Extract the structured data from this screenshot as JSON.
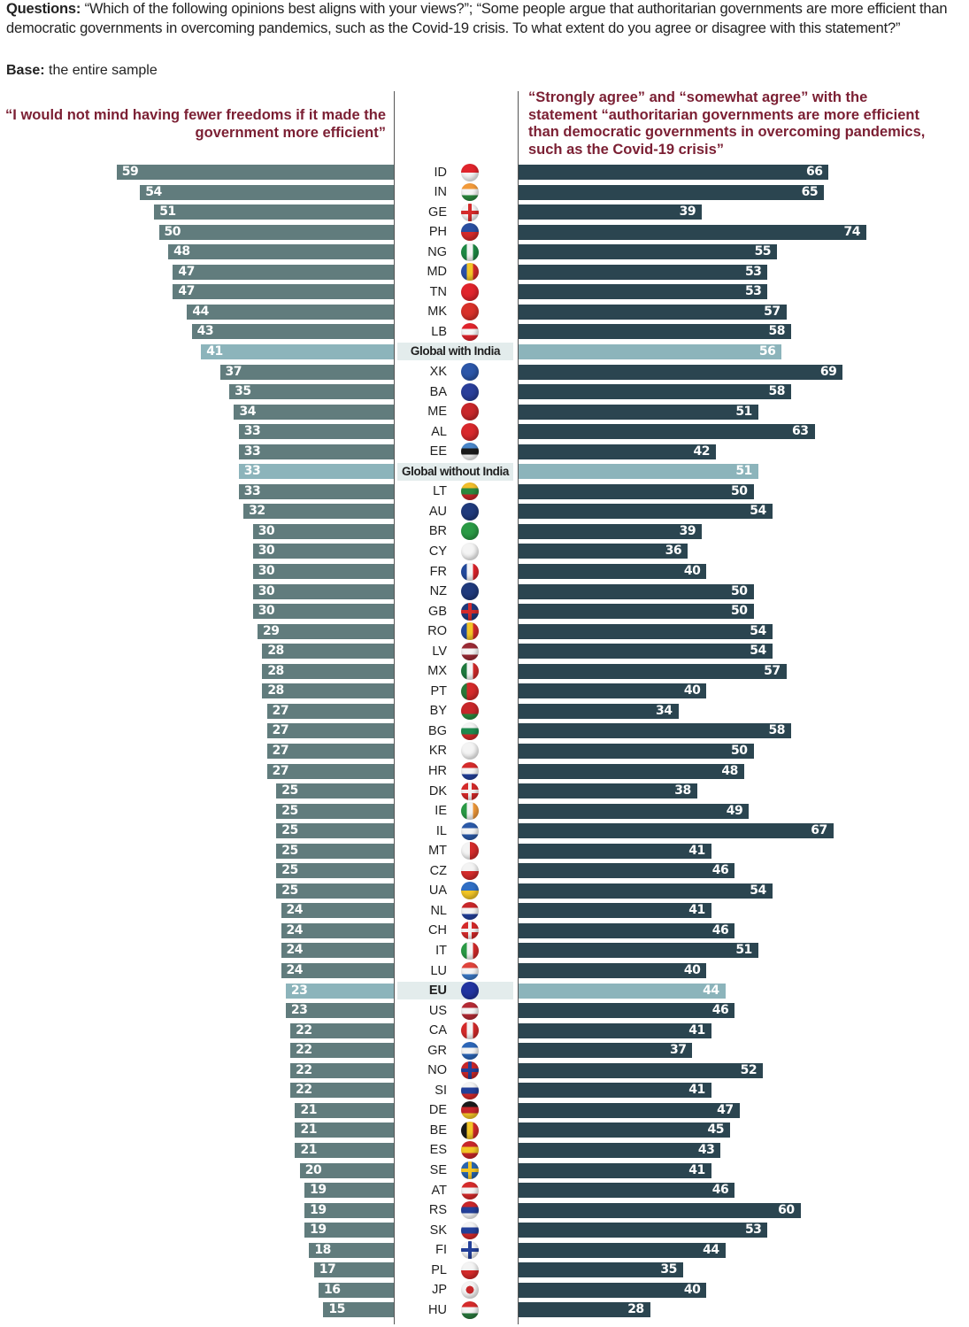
{
  "header": {
    "questions_label": "Questions:",
    "questions_text": " “Which of the following opinions best aligns with your views?”; “Some people argue that authoritarian governments are more efficient than democratic governments in overcoming pandemics, such as the Covid-19 crisis. To what extent do you agree or disagree with this statement?”",
    "base_label": "Base:",
    "base_text": " the entire sample"
  },
  "colors": {
    "left_bar": "#617c7d",
    "right_bar": "#2b4550",
    "aggregate_bar": "#8cb4bb",
    "aggregate_row_bg": "#e3ecec",
    "heading": "#7b1f33"
  },
  "chart_data": {
    "type": "bar",
    "orientation": "horizontal-diverging",
    "series": [
      {
        "name": "“I would not mind having fewer freedoms if it made the government more efficient”",
        "side": "left"
      },
      {
        "name": "“Strongly agree” and “somewhat agree” with the statement “authoritarian governments are more efficient than democratic governments in overcoming pandemics, such as the Covid-19 crisis”",
        "side": "right"
      }
    ],
    "unit": "%",
    "xlim": [
      0,
      74
    ],
    "rows": [
      {
        "label": "ID",
        "flag": "indonesia-flag-icon",
        "left": 59,
        "right": 66,
        "aggregate": false
      },
      {
        "label": "IN",
        "flag": "india-flag-icon",
        "left": 54,
        "right": 65,
        "aggregate": false
      },
      {
        "label": "GE",
        "flag": "georgia-flag-icon",
        "left": 51,
        "right": 39,
        "aggregate": false
      },
      {
        "label": "PH",
        "flag": "philippines-flag-icon",
        "left": 50,
        "right": 74,
        "aggregate": false
      },
      {
        "label": "NG",
        "flag": "nigeria-flag-icon",
        "left": 48,
        "right": 55,
        "aggregate": false
      },
      {
        "label": "MD",
        "flag": "moldova-flag-icon",
        "left": 47,
        "right": 53,
        "aggregate": false
      },
      {
        "label": "TN",
        "flag": "tunisia-flag-icon",
        "left": 47,
        "right": 53,
        "aggregate": false
      },
      {
        "label": "MK",
        "flag": "north-macedonia-flag-icon",
        "left": 44,
        "right": 57,
        "aggregate": false
      },
      {
        "label": "LB",
        "flag": "lebanon-flag-icon",
        "left": 43,
        "right": 58,
        "aggregate": false
      },
      {
        "label": "Global with India",
        "flag": null,
        "left": 41,
        "right": 56,
        "aggregate": true
      },
      {
        "label": "XK",
        "flag": "kosovo-flag-icon",
        "left": 37,
        "right": 69,
        "aggregate": false
      },
      {
        "label": "BA",
        "flag": "bosnia-flag-icon",
        "left": 35,
        "right": 58,
        "aggregate": false
      },
      {
        "label": "ME",
        "flag": "montenegro-flag-icon",
        "left": 34,
        "right": 51,
        "aggregate": false
      },
      {
        "label": "AL",
        "flag": "albania-flag-icon",
        "left": 33,
        "right": 63,
        "aggregate": false
      },
      {
        "label": "EE",
        "flag": "estonia-flag-icon",
        "left": 33,
        "right": 42,
        "aggregate": false
      },
      {
        "label": "Global without India",
        "flag": null,
        "left": 33,
        "right": 51,
        "aggregate": true
      },
      {
        "label": "LT",
        "flag": "lithuania-flag-icon",
        "left": 33,
        "right": 50,
        "aggregate": false
      },
      {
        "label": "AU",
        "flag": "australia-flag-icon",
        "left": 32,
        "right": 54,
        "aggregate": false
      },
      {
        "label": "BR",
        "flag": "brazil-flag-icon",
        "left": 30,
        "right": 39,
        "aggregate": false
      },
      {
        "label": "CY",
        "flag": "cyprus-flag-icon",
        "left": 30,
        "right": 36,
        "aggregate": false
      },
      {
        "label": "FR",
        "flag": "france-flag-icon",
        "left": 30,
        "right": 40,
        "aggregate": false
      },
      {
        "label": "NZ",
        "flag": "new-zealand-flag-icon",
        "left": 30,
        "right": 50,
        "aggregate": false
      },
      {
        "label": "GB",
        "flag": "uk-flag-icon",
        "left": 30,
        "right": 50,
        "aggregate": false
      },
      {
        "label": "RO",
        "flag": "romania-flag-icon",
        "left": 29,
        "right": 54,
        "aggregate": false
      },
      {
        "label": "LV",
        "flag": "latvia-flag-icon",
        "left": 28,
        "right": 54,
        "aggregate": false
      },
      {
        "label": "MX",
        "flag": "mexico-flag-icon",
        "left": 28,
        "right": 57,
        "aggregate": false
      },
      {
        "label": "PT",
        "flag": "portugal-flag-icon",
        "left": 28,
        "right": 40,
        "aggregate": false
      },
      {
        "label": "BY",
        "flag": "belarus-flag-icon",
        "left": 27,
        "right": 34,
        "aggregate": false
      },
      {
        "label": "BG",
        "flag": "bulgaria-flag-icon",
        "left": 27,
        "right": 58,
        "aggregate": false
      },
      {
        "label": "KR",
        "flag": "south-korea-flag-icon",
        "left": 27,
        "right": 50,
        "aggregate": false
      },
      {
        "label": "HR",
        "flag": "croatia-flag-icon",
        "left": 27,
        "right": 48,
        "aggregate": false
      },
      {
        "label": "DK",
        "flag": "denmark-flag-icon",
        "left": 25,
        "right": 38,
        "aggregate": false
      },
      {
        "label": "IE",
        "flag": "ireland-flag-icon",
        "left": 25,
        "right": 49,
        "aggregate": false
      },
      {
        "label": "IL",
        "flag": "israel-flag-icon",
        "left": 25,
        "right": 67,
        "aggregate": false
      },
      {
        "label": "MT",
        "flag": "malta-flag-icon",
        "left": 25,
        "right": 41,
        "aggregate": false
      },
      {
        "label": "CZ",
        "flag": "czechia-flag-icon",
        "left": 25,
        "right": 46,
        "aggregate": false
      },
      {
        "label": "UA",
        "flag": "ukraine-flag-icon",
        "left": 25,
        "right": 54,
        "aggregate": false
      },
      {
        "label": "NL",
        "flag": "netherlands-flag-icon",
        "left": 24,
        "right": 41,
        "aggregate": false
      },
      {
        "label": "CH",
        "flag": "switzerland-flag-icon",
        "left": 24,
        "right": 46,
        "aggregate": false
      },
      {
        "label": "IT",
        "flag": "italy-flag-icon",
        "left": 24,
        "right": 51,
        "aggregate": false
      },
      {
        "label": "LU",
        "flag": "luxembourg-flag-icon",
        "left": 24,
        "right": 40,
        "aggregate": false
      },
      {
        "label": "EU",
        "flag": "eu-flag-icon",
        "left": 23,
        "right": 44,
        "aggregate": true
      },
      {
        "label": "US",
        "flag": "usa-flag-icon",
        "left": 23,
        "right": 46,
        "aggregate": false
      },
      {
        "label": "CA",
        "flag": "canada-flag-icon",
        "left": 22,
        "right": 41,
        "aggregate": false
      },
      {
        "label": "GR",
        "flag": "greece-flag-icon",
        "left": 22,
        "right": 37,
        "aggregate": false
      },
      {
        "label": "NO",
        "flag": "norway-flag-icon",
        "left": 22,
        "right": 52,
        "aggregate": false
      },
      {
        "label": "SI",
        "flag": "slovenia-flag-icon",
        "left": 22,
        "right": 41,
        "aggregate": false
      },
      {
        "label": "DE",
        "flag": "germany-flag-icon",
        "left": 21,
        "right": 47,
        "aggregate": false
      },
      {
        "label": "BE",
        "flag": "belgium-flag-icon",
        "left": 21,
        "right": 45,
        "aggregate": false
      },
      {
        "label": "ES",
        "flag": "spain-flag-icon",
        "left": 21,
        "right": 43,
        "aggregate": false
      },
      {
        "label": "SE",
        "flag": "sweden-flag-icon",
        "left": 20,
        "right": 41,
        "aggregate": false
      },
      {
        "label": "AT",
        "flag": "austria-flag-icon",
        "left": 19,
        "right": 46,
        "aggregate": false
      },
      {
        "label": "RS",
        "flag": "serbia-flag-icon",
        "left": 19,
        "right": 60,
        "aggregate": false
      },
      {
        "label": "SK",
        "flag": "slovakia-flag-icon",
        "left": 19,
        "right": 53,
        "aggregate": false
      },
      {
        "label": "FI",
        "flag": "finland-flag-icon",
        "left": 18,
        "right": 44,
        "aggregate": false
      },
      {
        "label": "PL",
        "flag": "poland-flag-icon",
        "left": 17,
        "right": 35,
        "aggregate": false
      },
      {
        "label": "JP",
        "flag": "japan-flag-icon",
        "left": 16,
        "right": 40,
        "aggregate": false
      },
      {
        "label": "HU",
        "flag": "hungary-flag-icon",
        "left": 15,
        "right": 28,
        "aggregate": false
      }
    ]
  }
}
